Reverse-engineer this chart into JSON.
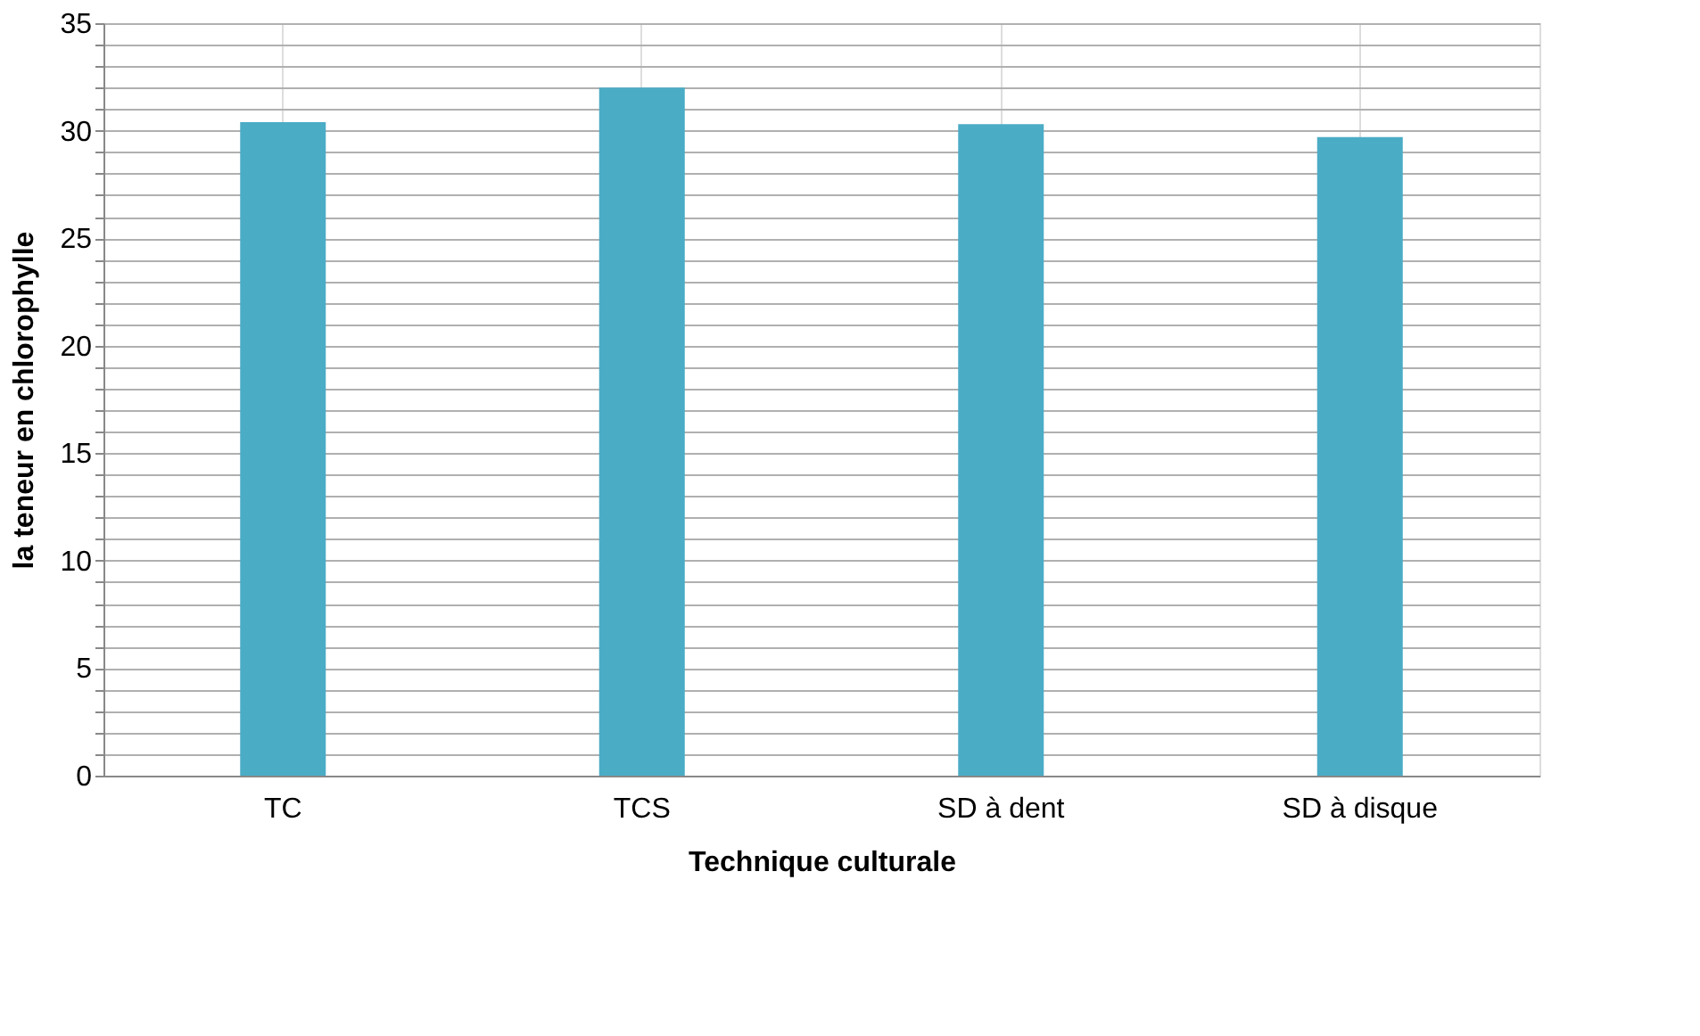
{
  "chart_data": {
    "type": "bar",
    "xlabel": "Technique culturale",
    "ylabel": "la teneur en chlorophylle",
    "categories": [
      "TC",
      "TCS",
      "SD à dent",
      "SD à disque"
    ],
    "values": [
      30.4,
      32.0,
      30.3,
      29.7
    ],
    "color": "#4bacc6",
    "ylim": [
      0,
      35
    ],
    "yticks": [
      0,
      {
        "value": 1,
        "label": null
      },
      {
        "value": 2,
        "label": null
      },
      {
        "value": 3,
        "label": null
      },
      {
        "value": 4,
        "label": null
      },
      5,
      {
        "value": 6,
        "label": null
      },
      {
        "value": 7,
        "label": null
      },
      {
        "value": 8,
        "label": null
      },
      {
        "value": 9,
        "label": null
      },
      10,
      {
        "value": 11,
        "label": null
      },
      {
        "value": 12,
        "label": null
      },
      {
        "value": 13,
        "label": null
      },
      {
        "value": 14,
        "label": null
      },
      15,
      {
        "value": 16,
        "label": null
      },
      {
        "value": 17,
        "label": null
      },
      {
        "value": 18,
        "label": null
      },
      {
        "value": 19,
        "label": null
      },
      20,
      {
        "value": 21,
        "label": null
      },
      {
        "value": 22,
        "label": null
      },
      {
        "value": 23,
        "label": null
      },
      {
        "value": 24,
        "label": null
      },
      25,
      {
        "value": 26,
        "label": null
      },
      {
        "value": 27,
        "label": null
      },
      {
        "value": 28,
        "label": null
      },
      {
        "value": 29,
        "label": null
      },
      30,
      {
        "value": 31,
        "label": null
      },
      {
        "value": 32,
        "label": null
      },
      {
        "value": 33,
        "label": null
      },
      {
        "value": 34,
        "label": null
      },
      35
    ],
    "grid": true
  }
}
